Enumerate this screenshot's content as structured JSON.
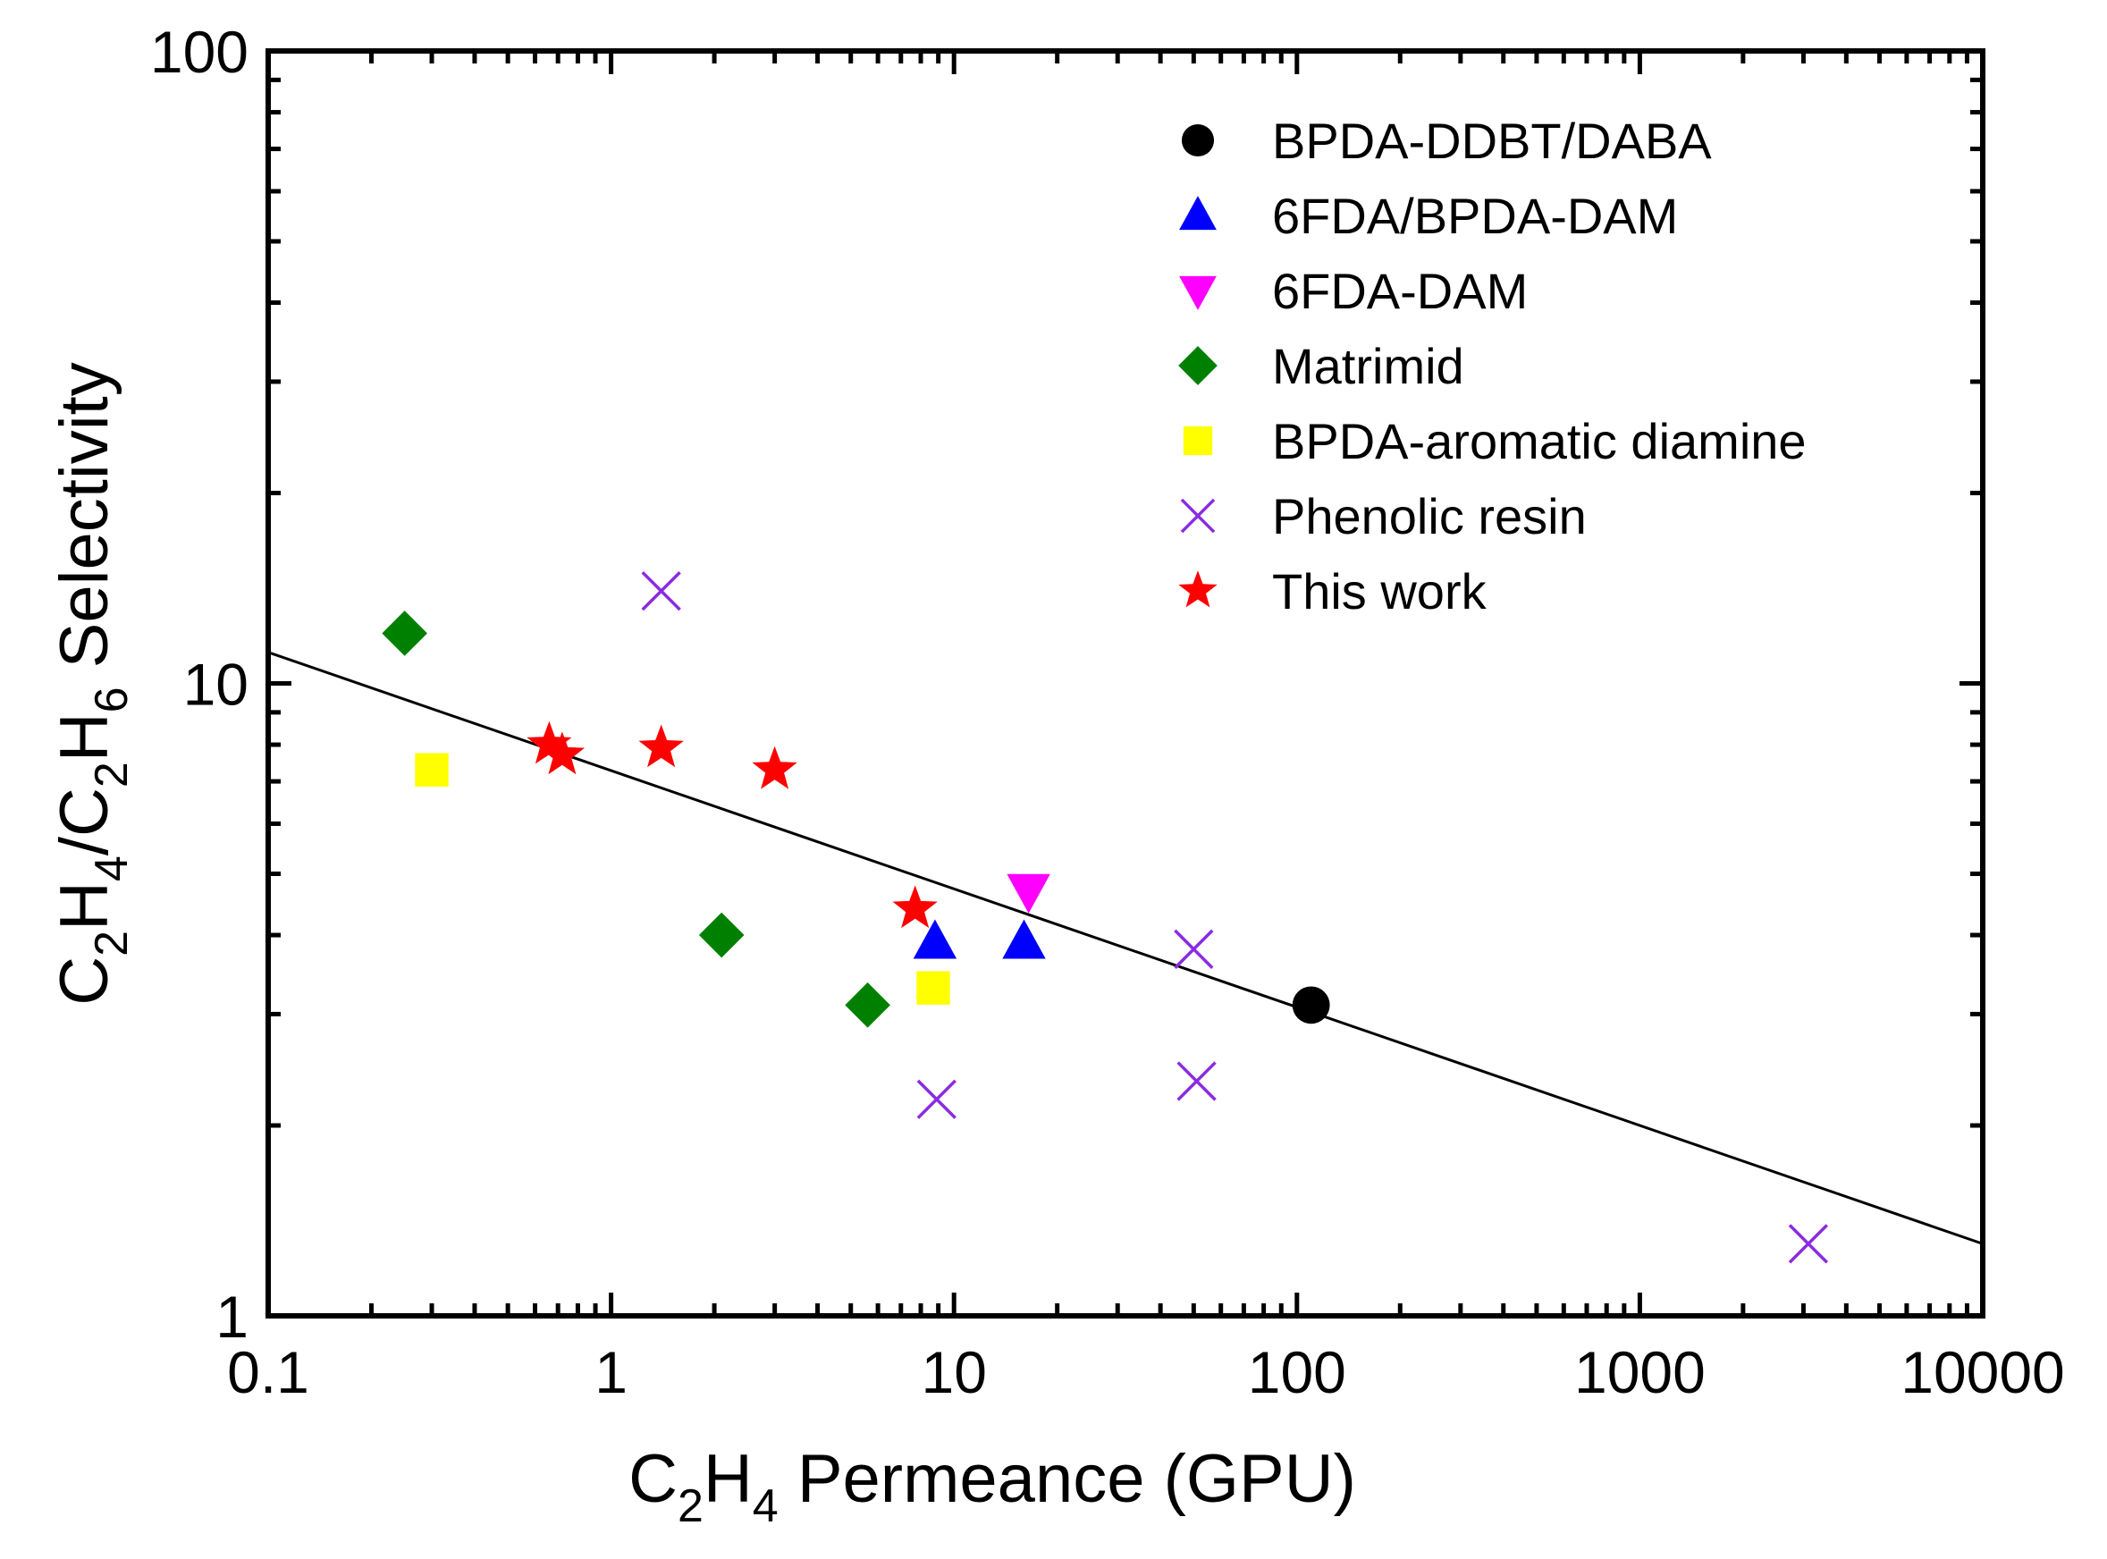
{
  "chart_data": {
    "type": "scatter",
    "title": "",
    "xscale": "log",
    "yscale": "log",
    "xlim": [
      0.1,
      10000
    ],
    "ylim": [
      1,
      100
    ],
    "xlabel": "C2H4 Permeance (GPU)",
    "ylabel": "C2H4/C2H6 Selectivity",
    "xlabel_parts": {
      "c1": "C",
      "s1": "2",
      "h1": "H",
      "s2": "4",
      "rest": " Permeance (GPU)"
    },
    "ylabel_parts": {
      "c1": "C",
      "s1": "2",
      "h1": "H",
      "s2": "4",
      "mid": "/C",
      "s3": "2",
      "h2": "H",
      "s4": "6",
      "rest": " Selectivity"
    },
    "x_ticks": [
      "0.1",
      "1",
      "10",
      "100",
      "1000",
      "10000"
    ],
    "y_ticks": [
      "1",
      "10",
      "100"
    ],
    "legend_position": "top-right",
    "series": [
      {
        "name": "BPDA-DDBT/DABA",
        "marker": "circle",
        "color": "#000000",
        "points": [
          [
            110,
            3.1
          ]
        ]
      },
      {
        "name": "6FDA/BPDA-DAM",
        "marker": "triangle-up",
        "color": "#0000ff",
        "points": [
          [
            8.8,
            3.9
          ],
          [
            16,
            3.9
          ]
        ]
      },
      {
        "name": "6FDA-DAM",
        "marker": "triangle-down",
        "color": "#ff00ff",
        "points": [
          [
            16.5,
            4.7
          ]
        ]
      },
      {
        "name": "Matrimid",
        "marker": "diamond",
        "color": "#008000",
        "points": [
          [
            0.25,
            12
          ],
          [
            2.1,
            4.0
          ],
          [
            5.6,
            3.1
          ]
        ]
      },
      {
        "name": "BPDA-aromatic diamine",
        "marker": "square",
        "color": "#ffff00",
        "points": [
          [
            0.3,
            7.3
          ],
          [
            8.7,
            3.3
          ]
        ]
      },
      {
        "name": "Phenolic resin",
        "marker": "x",
        "color": "#8a2be2",
        "points": [
          [
            1.4,
            14
          ],
          [
            8.9,
            2.2
          ],
          [
            50,
            3.8
          ],
          [
            51,
            2.35
          ],
          [
            3100,
            1.3
          ]
        ]
      },
      {
        "name": "This work",
        "marker": "star",
        "color": "#ff0000",
        "points": [
          [
            0.66,
            8.0
          ],
          [
            0.72,
            7.7
          ],
          [
            1.4,
            7.9
          ],
          [
            3.0,
            7.3
          ],
          [
            7.7,
            4.4
          ]
        ]
      }
    ],
    "trend_line": {
      "points": [
        [
          0.1,
          11.2
        ],
        [
          10000,
          1.3
        ]
      ],
      "color": "#000000"
    }
  }
}
